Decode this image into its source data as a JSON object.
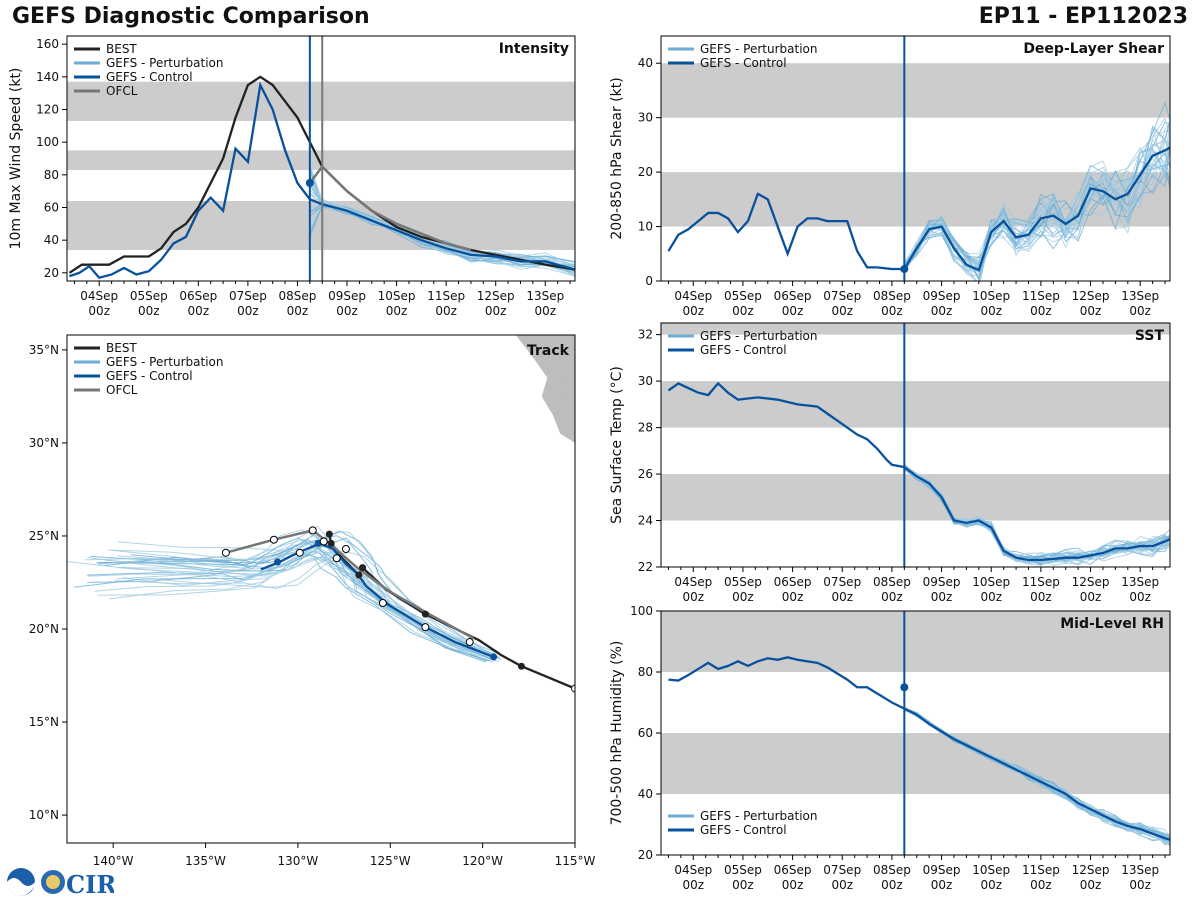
{
  "header": {
    "title": "GEFS Diagnostic Comparison",
    "storm_id": "EP11 - EP112023"
  },
  "logo": {
    "text": "CIRA"
  },
  "colors": {
    "best": "#222222",
    "pert": "#6baed6",
    "pert_thin": "#9ecae1",
    "control": "#08519c",
    "ofcl": "#777777",
    "band": "#cccccc",
    "init_line": "#08519c",
    "ofcl_line": "#777777"
  },
  "time_axis": {
    "ticks": [
      "04Sep\n00z",
      "05Sep\n00z",
      "06Sep\n00z",
      "07Sep\n00z",
      "08Sep\n00z",
      "09Sep\n00z",
      "10Sep\n00z",
      "11Sep\n00z",
      "12Sep\n00z",
      "13Sep\n00z"
    ],
    "xlim": [
      -0.65,
      9.6
    ],
    "init_time": 4.25
  },
  "chart_data": [
    {
      "id": "intensity",
      "type": "line",
      "title": "Intensity",
      "ylabel": "10m Max Wind Speed (kt)",
      "ylim": [
        15,
        165
      ],
      "yticks": [
        20,
        40,
        60,
        80,
        100,
        120,
        140,
        160
      ],
      "bands": [
        [
          34,
          64
        ],
        [
          83,
          95
        ],
        [
          113,
          137
        ]
      ],
      "ofcl_time": 4.5,
      "legend": [
        "BEST",
        "GEFS - Perturbation",
        "GEFS - Control",
        "OFCL"
      ],
      "best": {
        "x": [
          -0.6,
          -0.35,
          -0.1,
          0.2,
          0.5,
          0.75,
          1,
          1.25,
          1.5,
          1.75,
          2,
          2.25,
          2.5,
          2.75,
          3,
          3.25,
          3.5,
          3.75,
          4,
          4.25,
          4.5,
          5,
          5.5,
          6,
          6.5,
          7,
          7.5,
          8,
          8.5,
          9,
          9.6
        ],
        "y": [
          20,
          25,
          25,
          25,
          30,
          30,
          30,
          35,
          45,
          50,
          60,
          75,
          90,
          115,
          135,
          140,
          135,
          125,
          115,
          100,
          85,
          70,
          58,
          48,
          42,
          38,
          34,
          31,
          28,
          25,
          22
        ]
      },
      "control": {
        "x": [
          -0.6,
          -0.4,
          -0.2,
          0,
          0.25,
          0.5,
          0.75,
          1,
          1.25,
          1.5,
          1.75,
          2,
          2.25,
          2.5,
          2.75,
          3,
          3.25,
          3.5,
          3.75,
          4,
          4.25,
          4.5,
          5,
          5.5,
          6,
          6.5,
          7,
          7.5,
          8,
          8.5,
          9,
          9.6
        ],
        "y": [
          18,
          20,
          24,
          17,
          19,
          23,
          19,
          21,
          28,
          38,
          42,
          58,
          66,
          58,
          96,
          88,
          135,
          120,
          95,
          75,
          65,
          62,
          58,
          52,
          46,
          40,
          35,
          31,
          30,
          27,
          27,
          22
        ]
      },
      "ofcl": {
        "x": [
          4.25,
          4.5,
          5,
          5.5,
          6,
          6.5,
          7,
          7.5
        ],
        "y": [
          75,
          85,
          70,
          58,
          50,
          44,
          38,
          34
        ]
      },
      "markers": [
        {
          "series": "control",
          "x": 4.25,
          "y": 75
        }
      ]
    },
    {
      "id": "shear",
      "type": "line",
      "title": "Deep-Layer Shear",
      "ylabel": "200-850 hPa Shear (kt)",
      "ylim": [
        0,
        45
      ],
      "yticks": [
        0,
        10,
        20,
        30,
        40
      ],
      "bands": [
        [
          10,
          20
        ],
        [
          30,
          40
        ]
      ],
      "legend": [
        "GEFS - Perturbation",
        "GEFS - Control"
      ],
      "control": {
        "x": [
          -0.5,
          -0.3,
          -0.1,
          0.1,
          0.3,
          0.5,
          0.7,
          0.9,
          1.1,
          1.3,
          1.5,
          1.7,
          1.9,
          2.1,
          2.3,
          2.5,
          2.7,
          2.9,
          3.1,
          3.3,
          3.5,
          3.7,
          3.9,
          4.0,
          4.25,
          4.5,
          4.75,
          5,
          5.25,
          5.5,
          5.75,
          6,
          6.25,
          6.5,
          6.75,
          7,
          7.25,
          7.5,
          7.75,
          8,
          8.25,
          8.5,
          8.75,
          9,
          9.25,
          9.5,
          9.6
        ],
        "y": [
          5.5,
          8.5,
          9.5,
          11,
          12.5,
          12.5,
          11.5,
          9,
          11,
          16,
          15,
          10,
          5,
          10,
          11.5,
          11.5,
          11,
          11,
          11,
          5.5,
          2.5,
          2.5,
          2.3,
          2.2,
          2.2,
          6,
          9.5,
          10,
          6,
          3,
          2,
          9,
          11,
          8,
          8.5,
          11.5,
          12,
          10.5,
          12,
          17,
          16.5,
          15,
          16,
          19.5,
          23,
          24,
          24.5
        ]
      },
      "markers": [
        {
          "series": "control",
          "x": 4.25,
          "y": 2.2
        }
      ]
    },
    {
      "id": "sst",
      "type": "line",
      "title": "SST",
      "ylabel": "Sea Surface Temp (°C)",
      "ylim": [
        22,
        32.5
      ],
      "yticks": [
        22,
        24,
        26,
        28,
        30,
        32
      ],
      "bands": [
        [
          24,
          26
        ],
        [
          28,
          30
        ],
        [
          32,
          33
        ]
      ],
      "legend": [
        "GEFS - Perturbation",
        "GEFS - Control"
      ],
      "control": {
        "x": [
          -0.5,
          -0.3,
          -0.1,
          0.1,
          0.3,
          0.5,
          0.7,
          0.9,
          1.1,
          1.3,
          1.5,
          1.7,
          1.9,
          2.1,
          2.3,
          2.5,
          2.7,
          2.9,
          3.1,
          3.3,
          3.5,
          3.7,
          3.9,
          4.0,
          4.25,
          4.5,
          4.75,
          5,
          5.25,
          5.5,
          5.75,
          6,
          6.25,
          6.5,
          6.75,
          7,
          7.25,
          7.5,
          7.75,
          8,
          8.25,
          8.5,
          8.75,
          9,
          9.25,
          9.5,
          9.6
        ],
        "y": [
          29.6,
          29.9,
          29.7,
          29.5,
          29.4,
          29.9,
          29.5,
          29.2,
          29.25,
          29.3,
          29.25,
          29.2,
          29.1,
          29.0,
          28.95,
          28.9,
          28.6,
          28.3,
          28.0,
          27.7,
          27.5,
          27.1,
          26.6,
          26.4,
          26.3,
          25.9,
          25.6,
          25.0,
          24.0,
          23.9,
          24.0,
          23.7,
          22.7,
          22.4,
          22.3,
          22.3,
          22.35,
          22.4,
          22.4,
          22.5,
          22.6,
          22.8,
          22.8,
          22.9,
          22.9,
          23.1,
          23.2
        ]
      },
      "markers": []
    },
    {
      "id": "rh",
      "type": "line",
      "title": "Mid-Level RH",
      "ylabel": "700-500 hPa Humidity (%)",
      "ylim": [
        20,
        100
      ],
      "yticks": [
        20,
        40,
        60,
        80,
        100
      ],
      "bands": [
        [
          40,
          60
        ],
        [
          80,
          100
        ]
      ],
      "legend": [
        "GEFS - Perturbation",
        "GEFS - Control"
      ],
      "control": {
        "x": [
          -0.5,
          -0.3,
          -0.1,
          0.1,
          0.3,
          0.5,
          0.7,
          0.9,
          1.1,
          1.3,
          1.5,
          1.7,
          1.9,
          2.1,
          2.3,
          2.5,
          2.7,
          2.9,
          3.1,
          3.3,
          3.5,
          3.7,
          3.9,
          4.0,
          4.25,
          4.5,
          4.75,
          5,
          5.25,
          5.5,
          5.75,
          6,
          6.25,
          6.5,
          6.75,
          7,
          7.25,
          7.5,
          7.75,
          8,
          8.25,
          8.5,
          8.75,
          9,
          9.25,
          9.5,
          9.6
        ],
        "y": [
          77.5,
          77.2,
          79,
          81,
          83,
          81,
          82,
          83.5,
          82,
          83.5,
          84.5,
          84,
          84.8,
          84,
          83.5,
          83,
          81.5,
          79.5,
          77.5,
          75,
          75,
          73,
          71,
          70,
          68,
          66,
          63,
          60.5,
          58,
          56,
          54,
          52,
          50,
          48,
          46,
          44,
          42,
          40,
          37,
          35,
          33,
          31,
          29.5,
          28.5,
          27,
          25.5,
          25
        ]
      },
      "markers": [
        {
          "series": "control",
          "x": 4.25,
          "y": 75
        }
      ]
    },
    {
      "id": "track",
      "type": "scatter",
      "title": "Track",
      "xlim": [
        -142.5,
        -115
      ],
      "ylim": [
        8.5,
        35.8
      ],
      "xticks": [
        -140,
        -135,
        -130,
        -125,
        -120,
        -115
      ],
      "xticklabels": [
        "140°W",
        "135°W",
        "130°W",
        "125°W",
        "120°W",
        "115°W"
      ],
      "yticks": [
        10,
        15,
        20,
        25,
        30,
        35
      ],
      "yticklabels": [
        "10°N",
        "15°N",
        "20°N",
        "25°N",
        "30°N",
        "35°N"
      ],
      "legend": [
        "BEST",
        "GEFS - Perturbation",
        "GEFS - Control",
        "OFCL"
      ],
      "best": {
        "lon": [
          -115,
          -117.9,
          -119,
          -120.2,
          -123.1,
          -125.2,
          -126.5,
          -126.7,
          -127.6,
          -128.2,
          -128.3
        ],
        "lat": [
          16.8,
          18,
          18.6,
          19.4,
          20.8,
          22.1,
          23.3,
          22.9,
          23.8,
          24.6,
          25.1
        ]
      },
      "best_filled": [
        [
          -117.9,
          18
        ],
        [
          -123.1,
          20.8
        ],
        [
          -126.5,
          23.3
        ],
        [
          -126.7,
          22.9
        ],
        [
          -128.2,
          24.6
        ],
        [
          -128.3,
          25.1
        ]
      ],
      "best_open": [
        [
          -115,
          16.8
        ]
      ],
      "control": {
        "lon": [
          -119.4,
          -121.5,
          -123.1,
          -125.1,
          -126.3,
          -126.8,
          -127.4,
          -128.1,
          -128.8,
          -130,
          -131,
          -132
        ],
        "lat": [
          18.5,
          19.3,
          20.1,
          21.3,
          22.3,
          23,
          23.5,
          24.3,
          24.6,
          24.1,
          23.6,
          23.2
        ]
      },
      "control_open": [
        [
          -120.7,
          19.3
        ],
        [
          -123.1,
          20.1
        ],
        [
          -125.4,
          21.4
        ],
        [
          -127.9,
          23.8
        ],
        [
          -129.9,
          24.1
        ]
      ],
      "control_filled": [
        [
          -119.4,
          18.5
        ],
        [
          -128.9,
          24.6
        ],
        [
          -131.1,
          23.6
        ]
      ],
      "ofcl": {
        "lon": [
          -120.5,
          -122.9,
          -125,
          -126.8,
          -128.3,
          -129.2,
          -131.3,
          -133.9
        ],
        "lat": [
          19.5,
          20.8,
          22,
          23.3,
          24.6,
          25.3,
          24.8,
          24.1
        ]
      },
      "ofcl_open": [
        [
          -127.4,
          24.3
        ],
        [
          -128.6,
          24.7
        ],
        [
          -129.2,
          25.3
        ],
        [
          -131.3,
          24.8
        ],
        [
          -133.9,
          24.1
        ]
      ]
    }
  ]
}
